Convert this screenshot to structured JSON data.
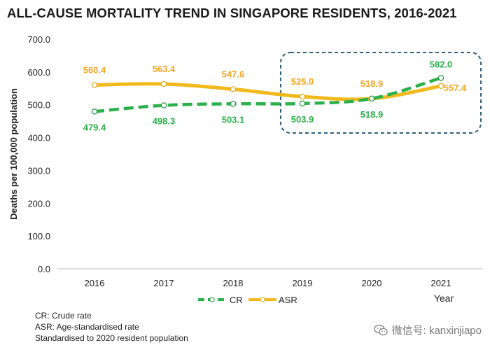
{
  "chart_data": {
    "type": "line",
    "title": "ALL-CAUSE MORTALITY TREND IN SINGAPORE RESIDENTS, 2016-2021",
    "xlabel": "Year",
    "ylabel": "Deaths per 100,000 population",
    "ylim": [
      0,
      700
    ],
    "ytick_labels": [
      "0.0",
      "100.0",
      "200.0",
      "300.0",
      "400.0",
      "500.0",
      "600.0",
      "700.0"
    ],
    "categories": [
      "2016",
      "2017",
      "2018",
      "2019",
      "2020",
      "2021"
    ],
    "series": [
      {
        "name": "CR",
        "style": "dashed",
        "color": "#2bb04a",
        "values": [
          479.4,
          498.3,
          503.1,
          503.9,
          518.9,
          582.0
        ],
        "labels": [
          "479.4",
          "498.3",
          "503.1",
          "503.9",
          "518.9",
          "582.0"
        ]
      },
      {
        "name": "ASR",
        "style": "solid",
        "color": "#f2b91f",
        "values": [
          560.4,
          563.4,
          547.6,
          525.0,
          518.9,
          557.4
        ],
        "labels": [
          "560.4",
          "563.4",
          "547.6",
          "525.0",
          "518.9",
          "557.4"
        ]
      }
    ],
    "highlight": {
      "from": "2019",
      "to": "2021",
      "color": "#2f5f7f"
    },
    "legend_position": "bottom-center",
    "grid": false
  },
  "footnotes": [
    "CR: Crude rate",
    "ASR: Age-standardised rate",
    "Standardised to 2020 resident population"
  ],
  "watermark": {
    "icon": "wechat-icon",
    "text": "微信号: kanxinjiapo"
  },
  "colors": {
    "cr_label": "#2bb04a",
    "asr_label": "#f5a623",
    "axis": "#bfbfbf",
    "tick_text": "#222222"
  }
}
